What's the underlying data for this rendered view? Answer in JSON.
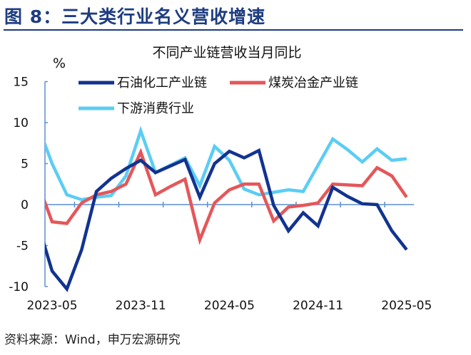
{
  "figure_title": "图 8：三大类行业名义营收增速",
  "source_note": "资料来源：Wind，申万宏源研究",
  "chart_data": {
    "type": "line",
    "title": "不同产业链营收当月同比",
    "ylabel": "%",
    "xlabel": "",
    "ylim": [
      -10,
      15
    ],
    "yticks": [
      15,
      10,
      5,
      0,
      -5,
      -10
    ],
    "xtick_labels": [
      "2023-05",
      "2023-11",
      "2024-05",
      "2024-11",
      "2025-05"
    ],
    "grid": false,
    "legend_position": "top",
    "x": [
      "2023-04",
      "2023-05",
      "2023-06",
      "2023-07",
      "2023-08",
      "2023-09",
      "2023-10",
      "2023-11",
      "2023-12",
      "2024-01",
      "2024-02",
      "2024-03",
      "2024-04",
      "2024-05",
      "2024-06",
      "2024-07",
      "2024-08",
      "2024-09",
      "2024-10",
      "2024-11",
      "2024-12",
      "2025-01",
      "2025-02",
      "2025-03",
      "2025-04",
      "2025-05"
    ],
    "series": [
      {
        "name": "石油化工产业链",
        "color": "#12338f",
        "values": [
          -2.1,
          -8.1,
          -10.3,
          -5.5,
          1.6,
          3.2,
          4.4,
          5.4,
          3.9,
          4.7,
          5.5,
          0.9,
          5.0,
          6.5,
          5.7,
          6.6,
          -0.1,
          -3.2,
          -1.0,
          -2.6,
          2.1,
          1.0,
          0.1,
          0.0,
          -3.2,
          -5.5
        ]
      },
      {
        "name": "煤炭冶金产业链",
        "color": "#e4575a",
        "values": [
          2.8,
          -2.1,
          -2.3,
          0.2,
          1.2,
          1.6,
          2.5,
          6.4,
          1.2,
          2.2,
          3.1,
          -4.3,
          0.2,
          1.8,
          2.5,
          2.5,
          -2.0,
          -0.3,
          -0.1,
          0.2,
          2.5,
          2.4,
          2.3,
          4.5,
          3.5,
          0.9
        ]
      },
      {
        "name": "下游消费行业",
        "color": "#5bcdf4",
        "values": [
          9.8,
          5.0,
          1.2,
          0.6,
          0.9,
          1.1,
          3.5,
          9.0,
          3.9,
          4.8,
          5.7,
          2.3,
          7.1,
          5.4,
          1.9,
          1.2,
          1.5,
          1.8,
          1.6,
          4.8,
          8.0,
          6.7,
          5.2,
          6.8,
          5.4,
          5.6
        ]
      }
    ]
  }
}
